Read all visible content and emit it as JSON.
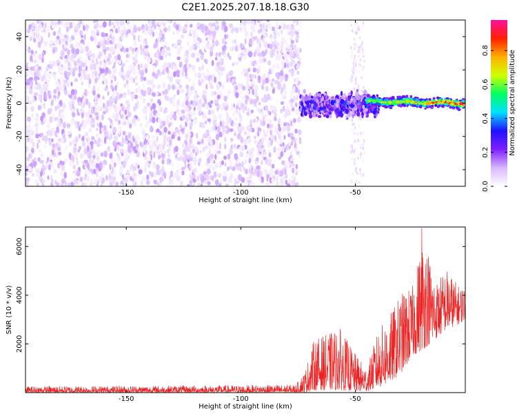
{
  "title": "C2E1.2025.207.18.18.G30",
  "chart_data": [
    {
      "type": "heatmap",
      "xlabel": "Height of straight line (km)",
      "ylabel": "Frequency (Hz)",
      "xlim": [
        -194,
        -2
      ],
      "ylim": [
        -50,
        50
      ],
      "x_ticks": [
        -150,
        -100,
        -50
      ],
      "x_tick_labels": [
        "-150",
        "-100",
        "-50"
      ],
      "y_ticks": [
        -40,
        -20,
        0,
        20,
        40
      ],
      "y_tick_labels": [
        "-40",
        "-20",
        "0",
        "20",
        "40"
      ],
      "colorbar": {
        "label": "Normalized spectral amplitude",
        "range": [
          0,
          0.98
        ],
        "ticks": [
          0.0,
          0.2,
          0.4,
          0.6,
          0.8
        ],
        "tick_labels": [
          "0.0",
          "0.2",
          "0.4",
          "0.6",
          "0.8"
        ],
        "colors": [
          "#ffffff",
          "#d8b8ff",
          "#8020ff",
          "#2010ff",
          "#00e0ff",
          "#00ff60",
          "#d0ff00",
          "#ffb000",
          "#ff2000",
          "#ff10a0"
        ]
      },
      "description_regions": {
        "noise_band": {
          "x_range": [
            -194,
            -74
          ],
          "y_range": [
            -50,
            50
          ],
          "amplitude_range": [
            0.0,
            0.12
          ]
        },
        "turbulent_band": {
          "x_range": [
            -74,
            -40
          ],
          "center_y": -1,
          "spread_y": 6,
          "amplitude_range": [
            0.1,
            0.4
          ]
        },
        "signal_line": {
          "x_range": [
            -45,
            -2
          ],
          "y_start": 1,
          "y_end": 0,
          "amplitude_range": [
            0.4,
            0.95
          ]
        }
      },
      "grid": false
    },
    {
      "type": "line",
      "xlabel": "Height of straight line (km)",
      "ylabel": "SNR (10 * v/v)",
      "xlim": [
        -194,
        -2
      ],
      "ylim": [
        0,
        6800
      ],
      "x_ticks": [
        -150,
        -100,
        -50
      ],
      "x_tick_labels": [
        "-150",
        "-100",
        "-50"
      ],
      "y_ticks": [
        2000,
        4000,
        6000
      ],
      "y_tick_labels": [
        "2000",
        "4000",
        "6000"
      ],
      "series_color": "#ee2222",
      "envelope": [
        {
          "x": -194,
          "lo": 0,
          "hi": 280
        },
        {
          "x": -150,
          "lo": 0,
          "hi": 300
        },
        {
          "x": -100,
          "lo": 0,
          "hi": 320
        },
        {
          "x": -76,
          "lo": 0,
          "hi": 350
        },
        {
          "x": -72,
          "lo": 0,
          "hi": 900
        },
        {
          "x": -68,
          "lo": 100,
          "hi": 2200
        },
        {
          "x": -62,
          "lo": 100,
          "hi": 2400
        },
        {
          "x": -57,
          "lo": 100,
          "hi": 2700
        },
        {
          "x": -50,
          "lo": 50,
          "hi": 1600
        },
        {
          "x": -45,
          "lo": 50,
          "hi": 1000
        },
        {
          "x": -40,
          "lo": 200,
          "hi": 2600
        },
        {
          "x": -35,
          "lo": 400,
          "hi": 3200
        },
        {
          "x": -30,
          "lo": 800,
          "hi": 4100
        },
        {
          "x": -25,
          "lo": 1500,
          "hi": 4400
        },
        {
          "x": -20,
          "lo": 1800,
          "hi": 6700
        },
        {
          "x": -15,
          "lo": 2200,
          "hi": 4600
        },
        {
          "x": -10,
          "lo": 2600,
          "hi": 5100
        },
        {
          "x": -5,
          "lo": 2800,
          "hi": 4400
        },
        {
          "x": -2,
          "lo": 3000,
          "hi": 4400
        }
      ],
      "peak": {
        "x": -21,
        "y": 6750
      },
      "grid": false
    }
  ]
}
